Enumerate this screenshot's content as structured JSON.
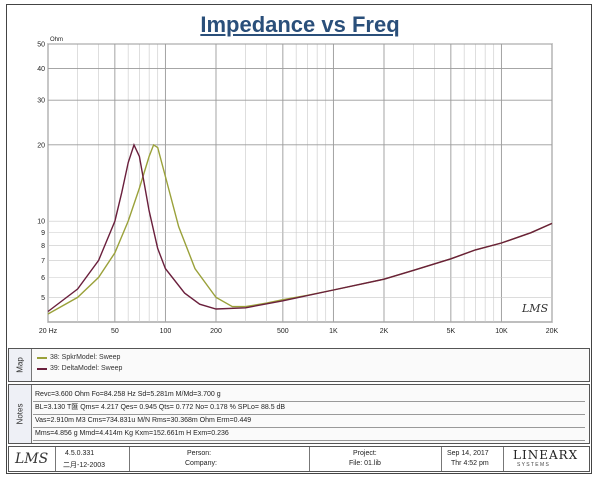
{
  "title": "Impedance vs Freq",
  "chart_data": {
    "type": "line",
    "title": "Impedance vs Freq",
    "ylabel": "Ohm",
    "xlabel": "",
    "x_scale": "log",
    "y_scale": "log",
    "xlim": [
      20,
      20000
    ],
    "ylim": [
      4,
      50
    ],
    "grid": true,
    "x_tick_labels": [
      "20 Hz",
      "50",
      "100",
      "200",
      "500",
      "1K",
      "2K",
      "5K",
      "10K",
      "20K"
    ],
    "y_tick_labels": [
      "50",
      "40",
      "30",
      "20",
      "10",
      "9",
      "8",
      "7",
      "6",
      "5"
    ],
    "series": [
      {
        "name": "38: SpkrModel: Sweep",
        "color": "#9aa13a",
        "points": [
          [
            20,
            4.3
          ],
          [
            30,
            5.0
          ],
          [
            40,
            6.0
          ],
          [
            50,
            7.5
          ],
          [
            60,
            10.0
          ],
          [
            70,
            13.5
          ],
          [
            80,
            18.0
          ],
          [
            85,
            20.0
          ],
          [
            90,
            19.5
          ],
          [
            100,
            15.0
          ],
          [
            120,
            9.5
          ],
          [
            150,
            6.5
          ],
          [
            200,
            5.0
          ],
          [
            250,
            4.6
          ],
          [
            300,
            4.6
          ],
          [
            400,
            4.75
          ],
          [
            500,
            4.9
          ],
          [
            700,
            5.1
          ],
          [
            1000,
            5.35
          ],
          [
            2000,
            5.9
          ],
          [
            3000,
            6.4
          ],
          [
            5000,
            7.1
          ],
          [
            7000,
            7.7
          ],
          [
            10000,
            8.2
          ],
          [
            15000,
            9.0
          ],
          [
            20000,
            9.8
          ]
        ]
      },
      {
        "name": "39: DeltaModel: Sweep",
        "color": "#6a1f3c",
        "points": [
          [
            20,
            4.4
          ],
          [
            30,
            5.4
          ],
          [
            40,
            7.0
          ],
          [
            50,
            10.0
          ],
          [
            55,
            13.0
          ],
          [
            60,
            17.0
          ],
          [
            65,
            20.0
          ],
          [
            70,
            18.0
          ],
          [
            80,
            11.0
          ],
          [
            90,
            7.8
          ],
          [
            100,
            6.5
          ],
          [
            130,
            5.2
          ],
          [
            160,
            4.7
          ],
          [
            200,
            4.5
          ],
          [
            300,
            4.55
          ],
          [
            500,
            4.85
          ],
          [
            1000,
            5.35
          ],
          [
            2000,
            5.9
          ],
          [
            3000,
            6.4
          ],
          [
            5000,
            7.1
          ],
          [
            7000,
            7.7
          ],
          [
            10000,
            8.2
          ],
          [
            15000,
            9.0
          ],
          [
            20000,
            9.8
          ]
        ]
      }
    ]
  },
  "map": {
    "label": "Map",
    "items": [
      {
        "text": "38: SpkrModel: Sweep",
        "color": "#9aa13a"
      },
      {
        "text": "39: DeltaModel: Sweep",
        "color": "#6a1f3c"
      }
    ]
  },
  "notes": {
    "label": "Notes",
    "rows": [
      "Revc=3.600 Ohm  Fo=84.258 Hz  Sd=5.281m  M/Md=3.700 g",
      "BL=3.130 T匯  Qms= 4.217  Qes= 0.945  Qts= 0.772  No= 0.178 %  SPLo= 88.5 dB",
      "Vas=2.910m M3 Cms=734.831u M/N  Rms=30.368m Ohm  Erm=0.449",
      "Mms=4.856 g  Mmd=4.414m Kg  Kxm=152.661m H  Exm=0.236"
    ]
  },
  "footer": {
    "version": "4.5.0.331",
    "date_local": "二月-12-2003",
    "person_label": "Person:",
    "company_label": "Company:",
    "project_label": "Project:",
    "file_label": "File: 01.lib",
    "date": "Sep 14, 2017",
    "time": "Thr   4:52 pm",
    "brand": "LINEARX",
    "brand_sub": "S Y S T E M S",
    "lms_logo": "LMS"
  },
  "watermark": "LMS"
}
